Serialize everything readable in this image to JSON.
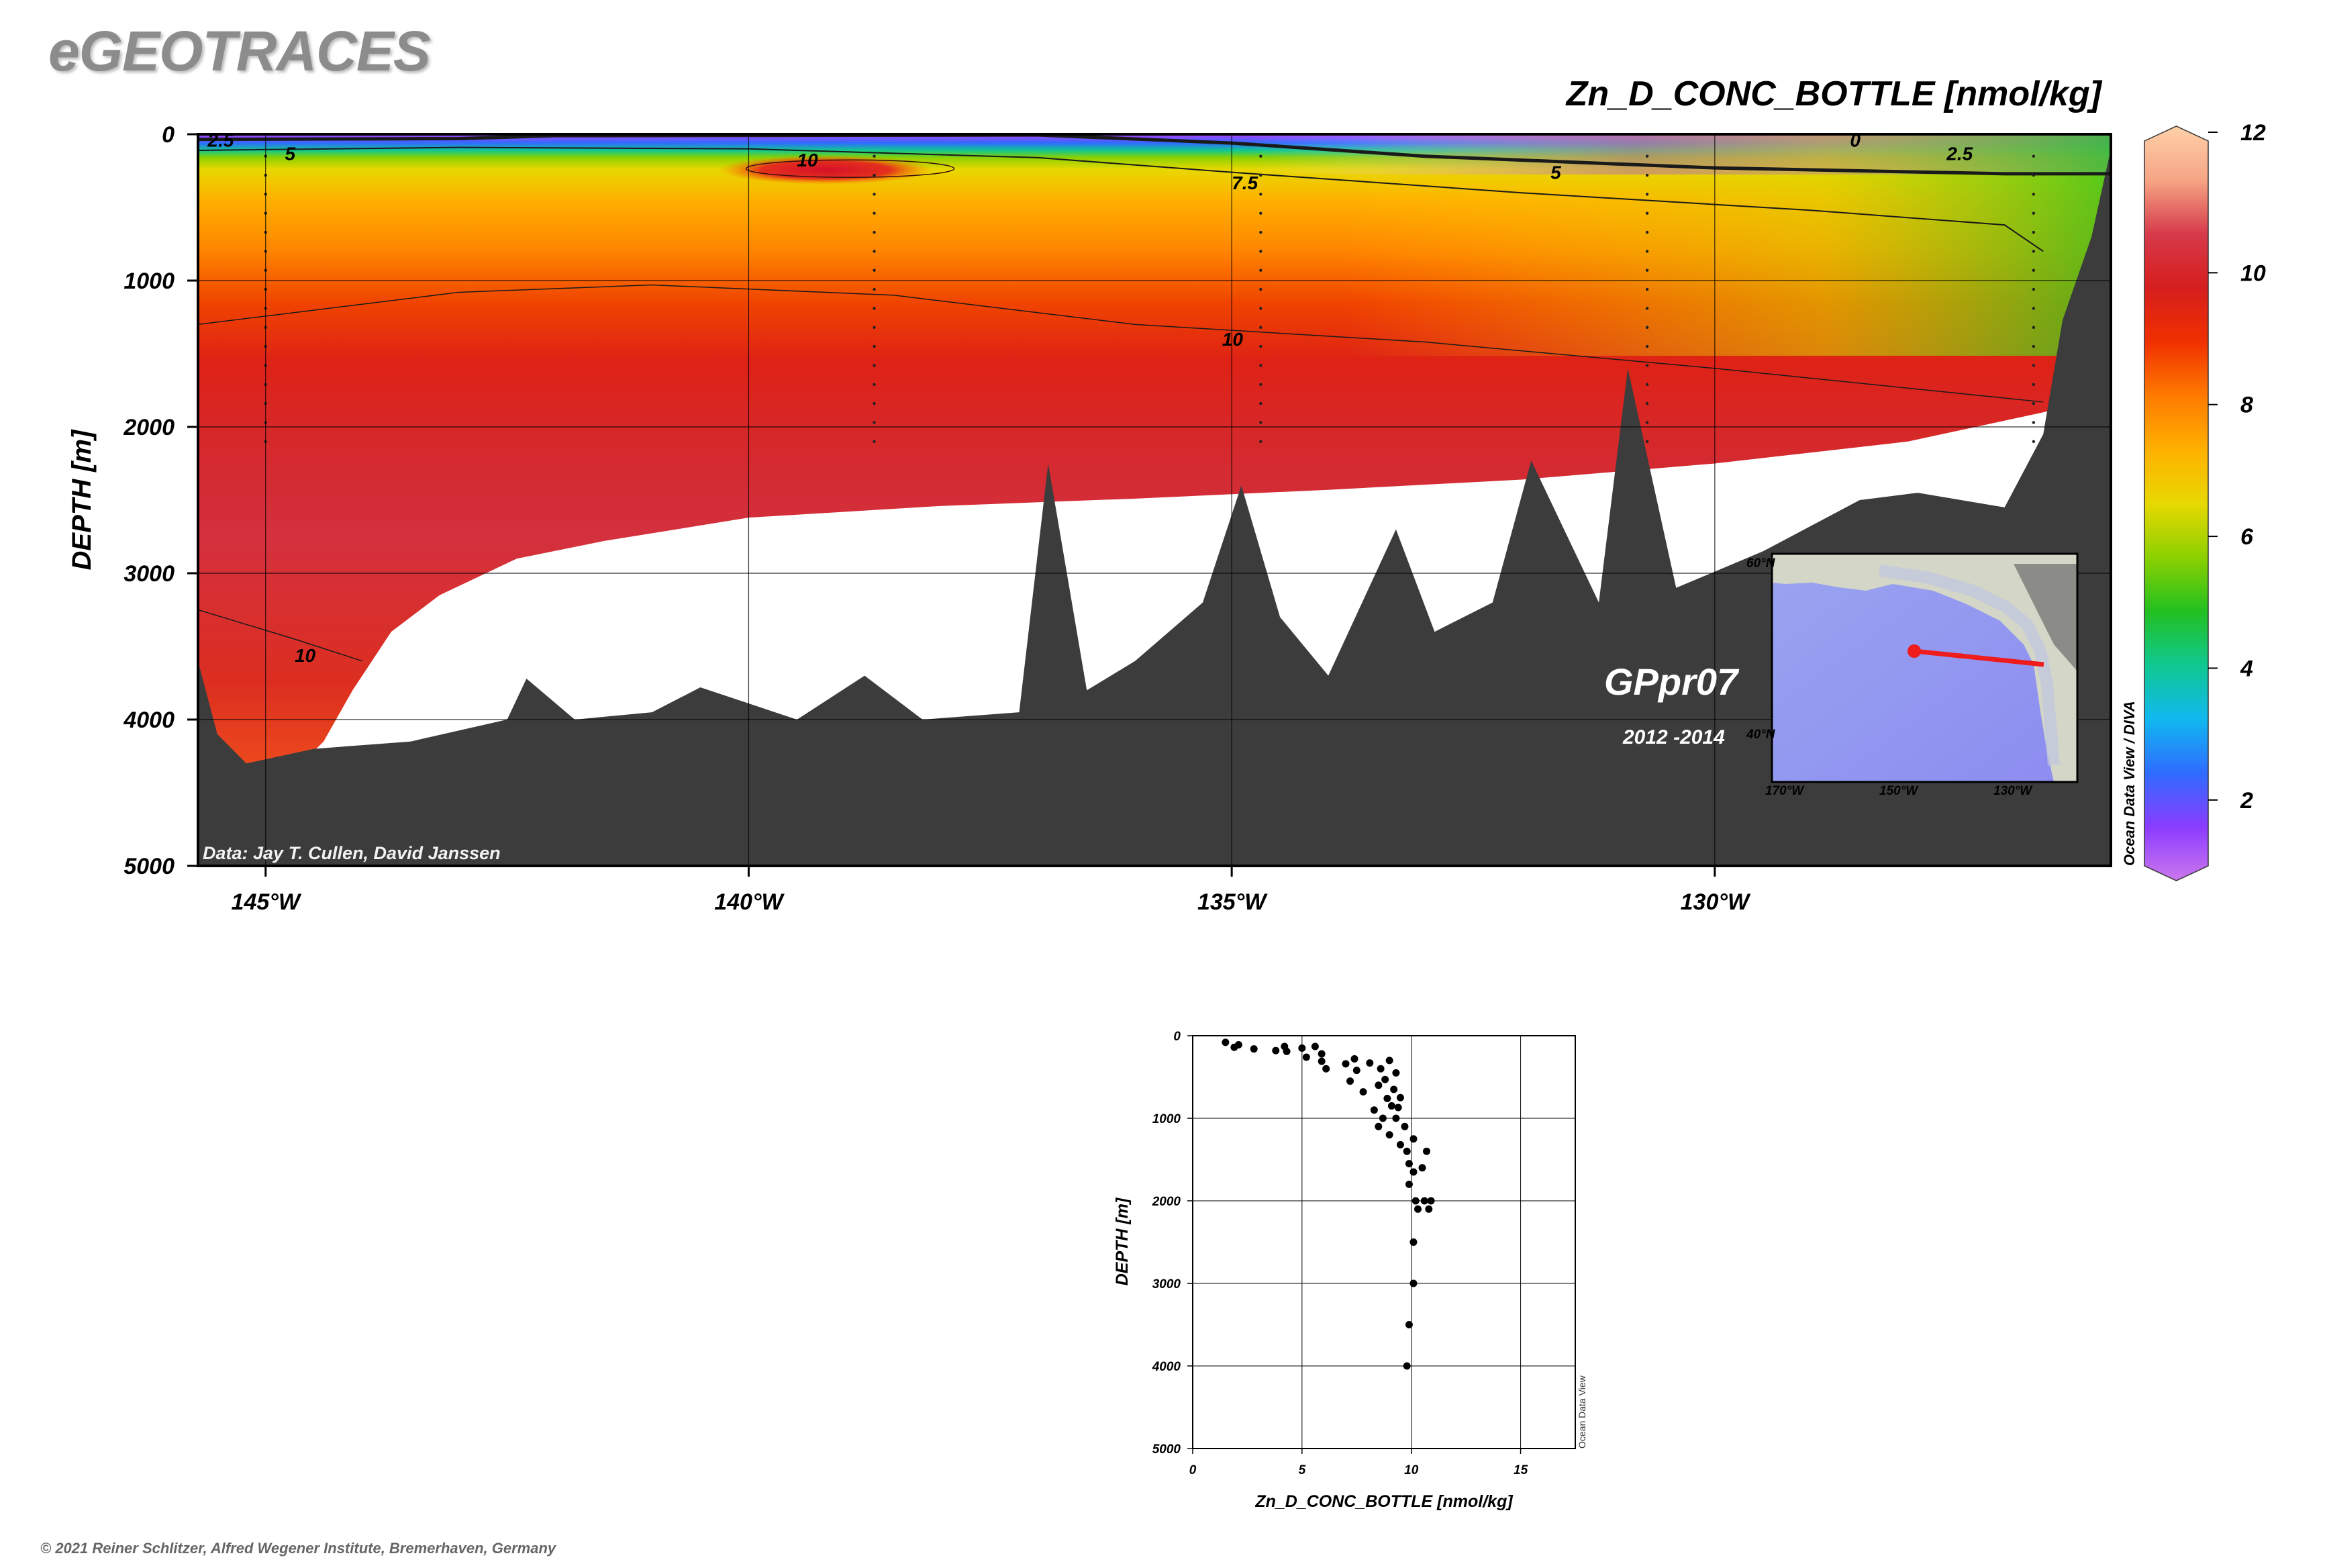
{
  "header": {
    "logo": "eGEOTRACES",
    "variable_title": "Zn_D_CONC_BOTTLE [nmol/kg]"
  },
  "section": {
    "ylabel": "DEPTH [m]",
    "data_credit": "Data: Jay T. Cullen, David Janssen",
    "cruise_label": "GPpr07",
    "cruise_years": "2012 -2014",
    "side_credit": "Ocean Data View / DIVA"
  },
  "colorbar": {
    "min": 1,
    "max": 12,
    "colors": [
      "#cc77ee",
      "#8a3cff",
      "#2f6cff",
      "#10b8f0",
      "#10c890",
      "#22c020",
      "#8cd000",
      "#e8d800",
      "#ffb000",
      "#ff7a00",
      "#f03000",
      "#d61e1e",
      "#d63a4a",
      "#f6a585",
      "#ffd0a8"
    ]
  },
  "inset_map": {
    "lat_labels": [
      "60°N",
      "40°N"
    ],
    "lon_labels": [
      "170°W",
      "150°W",
      "130°W"
    ],
    "track_color": "#ee1c1c"
  },
  "footer": "© 2021 Reiner Schlitzer, Alfred Wegener Institute, Bremerhaven, Germany",
  "chart_data": [
    {
      "type": "heatmap",
      "title": "Zn_D_CONC_BOTTLE [nmol/kg]",
      "xlabel": "",
      "ylabel": "DEPTH [m]",
      "x_ticks": [
        "145°W",
        "140°W",
        "135°W",
        "130°W"
      ],
      "x_tick_values": [
        -145,
        -140,
        -135,
        -130
      ],
      "xlim": [
        -145.7,
        -125.9
      ],
      "ylim": [
        5000,
        0
      ],
      "y_ticks": [
        0,
        1000,
        2000,
        3000,
        4000,
        5000
      ],
      "grid": true,
      "colorbar_ticks": [
        2,
        4,
        6,
        8,
        10,
        12
      ],
      "contour_labels": [
        "2.5",
        "5",
        "10",
        "7.5",
        "5",
        "0",
        "2.5",
        "10",
        "10"
      ],
      "station_longitudes": [
        -145,
        -138.7,
        -134.7,
        -130.7,
        -126.7
      ],
      "seafloor_depth_m": [
        [
          -145.7,
          3600
        ],
        [
          -145.5,
          4100
        ],
        [
          -145.2,
          4300
        ],
        [
          -144.5,
          4200
        ],
        [
          -143.5,
          4150
        ],
        [
          -142.5,
          4000
        ],
        [
          -142.3,
          3720
        ],
        [
          -141.8,
          4000
        ],
        [
          -141,
          3950
        ],
        [
          -140.5,
          3780
        ],
        [
          -139.5,
          4000
        ],
        [
          -138.8,
          3700
        ],
        [
          -138.2,
          4000
        ],
        [
          -137.2,
          3950
        ],
        [
          -136.9,
          2250
        ],
        [
          -136.5,
          3800
        ],
        [
          -136,
          3600
        ],
        [
          -135.3,
          3200
        ],
        [
          -134.9,
          2400
        ],
        [
          -134.5,
          3300
        ],
        [
          -134,
          3700
        ],
        [
          -133.3,
          2700
        ],
        [
          -132.9,
          3400
        ],
        [
          -132.3,
          3200
        ],
        [
          -131.9,
          2230
        ],
        [
          -131.2,
          3200
        ],
        [
          -130.9,
          1600
        ],
        [
          -130.4,
          3100
        ],
        [
          -129.5,
          2850
        ],
        [
          -128.5,
          2500
        ],
        [
          -127.9,
          2450
        ],
        [
          -127,
          2550
        ],
        [
          -126.6,
          2050
        ],
        [
          -126.4,
          1270
        ],
        [
          -126.1,
          700
        ],
        [
          -125.9,
          100
        ]
      ]
    },
    {
      "type": "scatter",
      "title": "",
      "xlabel": "Zn_D_CONC_BOTTLE [nmol/kg]",
      "ylabel": "DEPTH [m]",
      "xlim": [
        0,
        17.5
      ],
      "ylim": [
        5000,
        0
      ],
      "x_ticks": [
        0,
        5,
        10,
        15
      ],
      "y_ticks": [
        0,
        1000,
        2000,
        3000,
        4000,
        5000
      ],
      "side_label": "Ocean Data View",
      "points": [
        [
          1.5,
          80
        ],
        [
          1.9,
          140
        ],
        [
          2.1,
          110
        ],
        [
          2.8,
          160
        ],
        [
          3.8,
          180
        ],
        [
          4.2,
          130
        ],
        [
          4.3,
          190
        ],
        [
          5.0,
          150
        ],
        [
          5.2,
          260
        ],
        [
          5.6,
          130
        ],
        [
          5.9,
          220
        ],
        [
          5.9,
          310
        ],
        [
          6.1,
          400
        ],
        [
          7.0,
          340
        ],
        [
          7.2,
          550
        ],
        [
          7.4,
          280
        ],
        [
          7.5,
          420
        ],
        [
          7.8,
          680
        ],
        [
          8.1,
          330
        ],
        [
          8.3,
          900
        ],
        [
          8.5,
          1100
        ],
        [
          8.5,
          600
        ],
        [
          8.6,
          400
        ],
        [
          8.7,
          1000
        ],
        [
          8.8,
          530
        ],
        [
          8.9,
          760
        ],
        [
          9.0,
          1200
        ],
        [
          9.0,
          300
        ],
        [
          9.1,
          850
        ],
        [
          9.2,
          650
        ],
        [
          9.3,
          450
        ],
        [
          9.3,
          1000
        ],
        [
          9.4,
          870
        ],
        [
          9.5,
          1320
        ],
        [
          9.5,
          750
        ],
        [
          9.7,
          1100
        ],
        [
          9.8,
          1400
        ],
        [
          9.9,
          1550
        ],
        [
          9.9,
          1800
        ],
        [
          10.1,
          1250
        ],
        [
          10.1,
          1650
        ],
        [
          10.2,
          2000
        ],
        [
          10.3,
          2100
        ],
        [
          10.5,
          1600
        ],
        [
          10.6,
          2000
        ],
        [
          10.7,
          1400
        ],
        [
          10.8,
          2100
        ],
        [
          10.9,
          2000
        ],
        [
          10.1,
          2500
        ],
        [
          10.1,
          3000
        ],
        [
          9.9,
          3500
        ],
        [
          9.8,
          4000
        ]
      ]
    }
  ]
}
